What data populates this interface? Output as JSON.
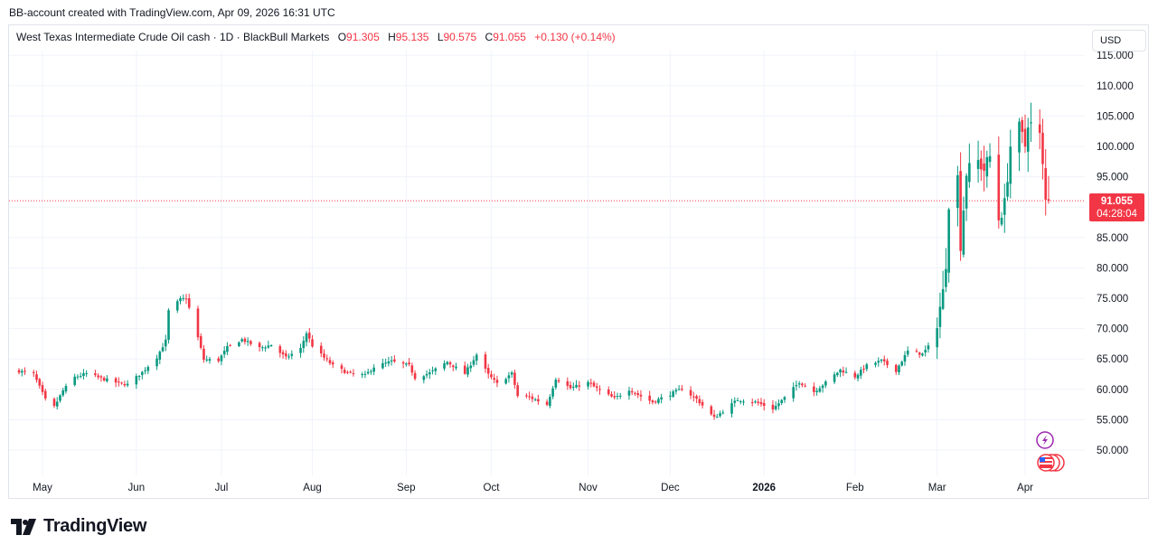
{
  "header": {
    "snapshot_text": "BB-account created with TradingView.com, Apr 09, 2026 16:31 UTC"
  },
  "legend": {
    "symbol": "West Texas Intermediate Crude Oil cash · 1D · BlackBull Markets",
    "o_label": "O",
    "o_value": "91.305",
    "h_label": "H",
    "h_value": "95.135",
    "l_label": "L",
    "l_value": "90.575",
    "c_label": "C",
    "c_value": "91.055",
    "change": "+0.130 (+0.14%)"
  },
  "currency_button": "USD",
  "last_price_tag": {
    "price": "91.055",
    "countdown": "04:28:04"
  },
  "branding": {
    "logo_text": "TradingView"
  },
  "colors": {
    "up": "#089981",
    "down": "#f23645",
    "grid": "#f0f3fa",
    "last_price_line": "#f23645"
  },
  "icons": [
    "lightning-event-icon",
    "us-flag-event-icon"
  ],
  "chart_data": {
    "type": "candlestick",
    "interval": "1D",
    "ylim": [
      45.0,
      116.0
    ],
    "y_ticks": [
      "50.000",
      "55.000",
      "60.000",
      "65.000",
      "70.000",
      "75.000",
      "80.000",
      "85.000",
      "90.000",
      "95.000",
      "100.000",
      "105.000",
      "110.000",
      "115.000"
    ],
    "x_ticks": [
      "May",
      "Jun",
      "Jul",
      "Aug",
      "Sep",
      "Oct",
      "Nov",
      "Dec",
      "2026",
      "Feb",
      "Mar",
      "Apr"
    ],
    "x_tick_dates": [
      "2025-05-01",
      "2025-06-02",
      "2025-07-01",
      "2025-08-01",
      "2025-09-02",
      "2025-10-01",
      "2025-11-03",
      "2025-12-01",
      "2026-01-02",
      "2026-02-02",
      "2026-03-02",
      "2026-04-01"
    ],
    "bold_ticks": [
      "2026"
    ],
    "grid": true,
    "last_price": 91.055,
    "close_path": [
      [
        "2025-04-23",
        63.0
      ],
      [
        "2025-04-28",
        62.5
      ],
      [
        "2025-05-02",
        58.3
      ],
      [
        "2025-05-05",
        57.1
      ],
      [
        "2025-05-08",
        59.8
      ],
      [
        "2025-05-12",
        62.0
      ],
      [
        "2025-05-16",
        62.6
      ],
      [
        "2025-05-21",
        61.8
      ],
      [
        "2025-05-27",
        61.0
      ],
      [
        "2025-05-30",
        60.8
      ],
      [
        "2025-06-04",
        62.8
      ],
      [
        "2025-06-09",
        65.3
      ],
      [
        "2025-06-12",
        68.0
      ],
      [
        "2025-06-13",
        72.9
      ],
      [
        "2025-06-17",
        74.8
      ],
      [
        "2025-06-19",
        75.0
      ],
      [
        "2025-06-23",
        68.5
      ],
      [
        "2025-06-25",
        64.9
      ],
      [
        "2025-06-30",
        64.8
      ],
      [
        "2025-07-03",
        66.9
      ],
      [
        "2025-07-08",
        68.2
      ],
      [
        "2025-07-14",
        66.8
      ],
      [
        "2025-07-18",
        67.3
      ],
      [
        "2025-07-23",
        65.2
      ],
      [
        "2025-07-28",
        66.7
      ],
      [
        "2025-07-30",
        69.3
      ],
      [
        "2025-08-01",
        67.2
      ],
      [
        "2025-08-05",
        65.2
      ],
      [
        "2025-08-08",
        63.9
      ],
      [
        "2025-08-13",
        62.7
      ],
      [
        "2025-08-19",
        62.3
      ],
      [
        "2025-08-22",
        63.7
      ],
      [
        "2025-08-28",
        64.6
      ],
      [
        "2025-09-03",
        63.9
      ],
      [
        "2025-09-05",
        61.9
      ],
      [
        "2025-09-10",
        62.7
      ],
      [
        "2025-09-16",
        64.5
      ],
      [
        "2025-09-22",
        62.6
      ],
      [
        "2025-09-26",
        65.7
      ],
      [
        "2025-09-30",
        62.4
      ],
      [
        "2025-10-03",
        60.9
      ],
      [
        "2025-10-08",
        62.6
      ],
      [
        "2025-10-10",
        58.9
      ],
      [
        "2025-10-14",
        58.7
      ],
      [
        "2025-10-20",
        57.5
      ],
      [
        "2025-10-23",
        61.8
      ],
      [
        "2025-10-28",
        60.2
      ],
      [
        "2025-11-03",
        61.1
      ],
      [
        "2025-11-07",
        59.8
      ],
      [
        "2025-11-12",
        58.5
      ],
      [
        "2025-11-17",
        60.0
      ],
      [
        "2025-11-20",
        59.1
      ],
      [
        "2025-11-25",
        57.9
      ],
      [
        "2025-12-01",
        59.2
      ],
      [
        "2025-12-05",
        60.1
      ],
      [
        "2025-12-10",
        58.4
      ],
      [
        "2025-12-16",
        55.3
      ],
      [
        "2025-12-19",
        56.4
      ],
      [
        "2025-12-24",
        58.3
      ],
      [
        "2025-12-30",
        57.9
      ],
      [
        "2026-01-05",
        56.8
      ],
      [
        "2026-01-09",
        58.6
      ],
      [
        "2026-01-14",
        61.2
      ],
      [
        "2026-01-19",
        59.6
      ],
      [
        "2026-01-23",
        61.1
      ],
      [
        "2026-01-28",
        63.2
      ],
      [
        "2026-02-02",
        62.1
      ],
      [
        "2026-02-06",
        63.9
      ],
      [
        "2026-02-11",
        64.7
      ],
      [
        "2026-02-16",
        63.1
      ],
      [
        "2026-02-20",
        66.3
      ],
      [
        "2026-02-25",
        65.8
      ],
      [
        "2026-02-27",
        67.0
      ],
      [
        "2026-03-02",
        71.2
      ],
      [
        "2026-03-04",
        75.9
      ],
      [
        "2026-03-05",
        81.0
      ],
      [
        "2026-03-06",
        90.9
      ],
      [
        "2026-03-09",
        94.8
      ],
      [
        "2026-03-10",
        84.0
      ],
      [
        "2026-03-12",
        95.7
      ],
      [
        "2026-03-16",
        97.5
      ],
      [
        "2026-03-18",
        96.2
      ],
      [
        "2026-03-20",
        98.3
      ],
      [
        "2026-03-23",
        88.1
      ],
      [
        "2026-03-25",
        90.4
      ],
      [
        "2026-03-27",
        100.1
      ],
      [
        "2026-03-30",
        102.9
      ],
      [
        "2026-04-01",
        100.1
      ],
      [
        "2026-04-02",
        104.2
      ],
      [
        "2026-04-06",
        101.6
      ],
      [
        "2026-04-07",
        96.5
      ],
      [
        "2026-04-08",
        91.0
      ],
      [
        "2026-04-09",
        91.055
      ]
    ],
    "last_candle": {
      "date": "2026-04-09",
      "open": 91.305,
      "high": 95.135,
      "low": 90.575,
      "close": 91.055
    }
  }
}
